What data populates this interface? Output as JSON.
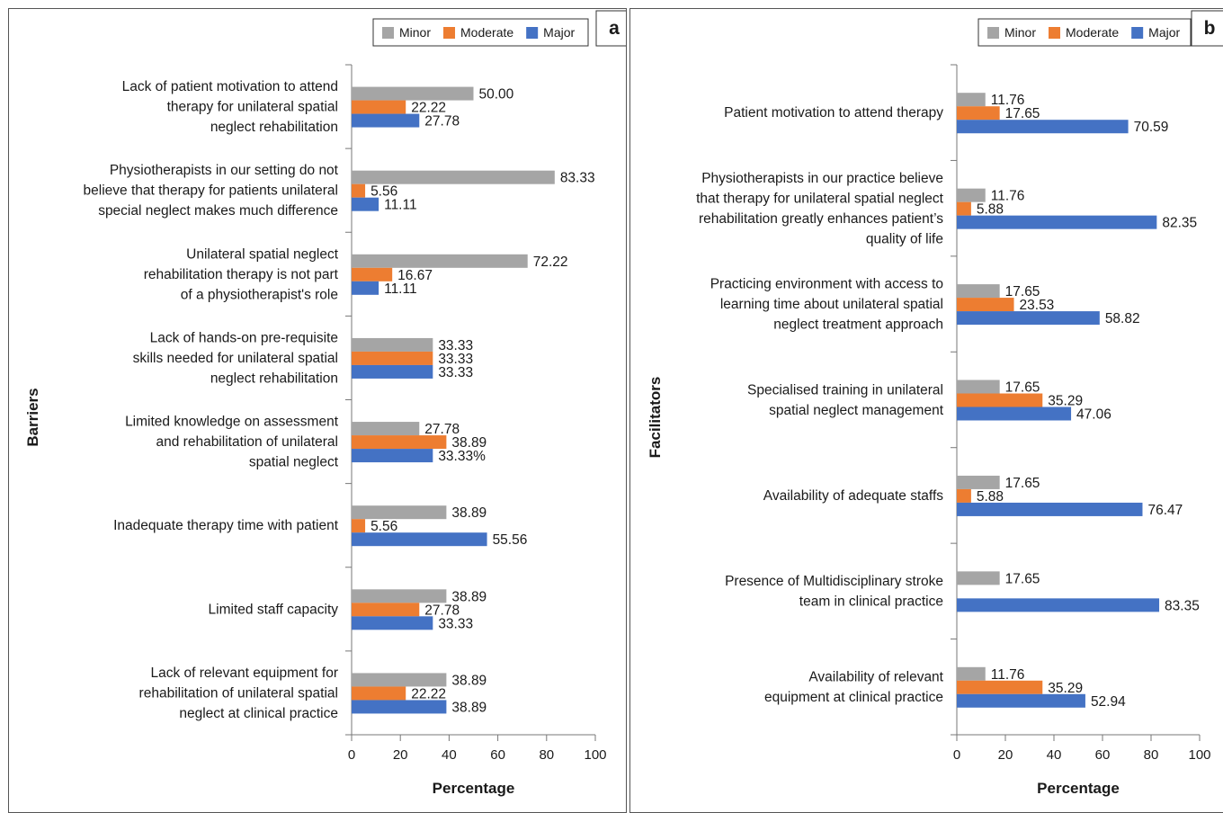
{
  "colors": {
    "minor": "#a5a5a5",
    "moderate": "#ed7d31",
    "major": "#4472c4"
  },
  "chart_data": [
    {
      "type": "bar",
      "orientation": "horizontal",
      "panel_letter": "a",
      "ylabel": "Barriers",
      "xlabel": "Percentage",
      "xlim": [
        0,
        100
      ],
      "xticks": [
        "0",
        "20",
        "40",
        "60",
        "80",
        "100"
      ],
      "legend": [
        "Minor",
        "Moderate",
        "Major"
      ],
      "legend_position": "top-right",
      "categories": [
        [
          "Lack of patient  motivation to attend",
          "therapy for unilateral spatial",
          "neglect rehabilitation"
        ],
        [
          "Physiotherapists in our setting do not",
          "believe that therapy for patients unilateral",
          "special neglect makes much difference"
        ],
        [
          "Unilateral spatial neglect ",
          "rehabilitation therapy  is not part",
          "of a physiotherapist's role"
        ],
        [
          "Lack of hands-on pre-requisite",
          "skills needed for unilateral spatial",
          "neglect rehabilitation"
        ],
        [
          "Limited knowledge on assessment",
          "and rehabilitation of unilateral",
          "spatial neglect"
        ],
        [
          "Inadequate therapy  time with patient"
        ],
        [
          "Limited staff capacity"
        ],
        [
          "Lack of relevant equipment for",
          "rehabilitation of unilateral spatial",
          "neglect at clinical practice"
        ]
      ],
      "series": [
        {
          "name": "Minor",
          "values": [
            50.0,
            83.33,
            72.22,
            33.33,
            27.78,
            38.89,
            38.89,
            38.89
          ],
          "labels": [
            "50.00",
            "83.33",
            "72.22",
            "33.33",
            "27.78",
            "38.89",
            "38.89",
            "38.89"
          ]
        },
        {
          "name": "Moderate",
          "values": [
            22.22,
            5.56,
            16.67,
            33.33,
            38.89,
            5.56,
            27.78,
            22.22
          ],
          "labels": [
            "22.22",
            "5.56",
            "16.67",
            "33.33",
            "38.89",
            "5.56",
            "27.78",
            "22.22"
          ]
        },
        {
          "name": "Major",
          "values": [
            27.78,
            11.11,
            11.11,
            33.33,
            33.33,
            55.56,
            33.33,
            38.89
          ],
          "labels": [
            "27.78",
            "11.11",
            "11.11",
            "33.33",
            "33.33%",
            "55.56",
            "33.33",
            "38.89"
          ]
        }
      ]
    },
    {
      "type": "bar",
      "orientation": "horizontal",
      "panel_letter": "b",
      "ylabel": "Facilitators",
      "xlabel": "Percentage",
      "xlim": [
        0,
        100
      ],
      "xticks": [
        "0",
        "20",
        "40",
        "60",
        "80",
        "100"
      ],
      "legend": [
        "Minor",
        "Moderate",
        "Major"
      ],
      "legend_position": "top-right",
      "categories": [
        [
          "Patient motivation to attend therapy"
        ],
        [
          "Physiotherapists in our practice believe",
          "that therapy for unilateral spatial neglect",
          "rehabilitation greatly enhances patient’s",
          "quality of life"
        ],
        [
          "Practicing environment with access to",
          "learning time about unilateral spatial",
          "neglect treatment approach"
        ],
        [
          "Specialised training in unilateral",
          "spatial neglect management"
        ],
        [
          "Availability of adequate staffs"
        ],
        [
          "Presence of Multidisciplinary stroke",
          "team in clinical practice"
        ],
        [
          "Availability of relevant",
          "equipment at clinical practice"
        ]
      ],
      "series": [
        {
          "name": "Minor",
          "values": [
            11.76,
            11.76,
            17.65,
            17.65,
            17.65,
            17.65,
            11.76
          ],
          "labels": [
            "11.76",
            "11.76",
            "17.65",
            "17.65",
            "17.65",
            "17.65",
            "11.76"
          ]
        },
        {
          "name": "Moderate",
          "values": [
            17.65,
            5.88,
            23.53,
            35.29,
            5.88,
            0,
            35.29
          ],
          "labels": [
            "17.65",
            "5.88",
            "23.53",
            "35.29",
            "5.88",
            "",
            "35.29"
          ]
        },
        {
          "name": "Major",
          "values": [
            70.59,
            82.35,
            58.82,
            47.06,
            76.47,
            83.35,
            52.94
          ],
          "labels": [
            "70.59",
            "82.35",
            "58.82",
            "47.06",
            "76.47",
            "83.35",
            "52.94"
          ]
        }
      ]
    }
  ]
}
